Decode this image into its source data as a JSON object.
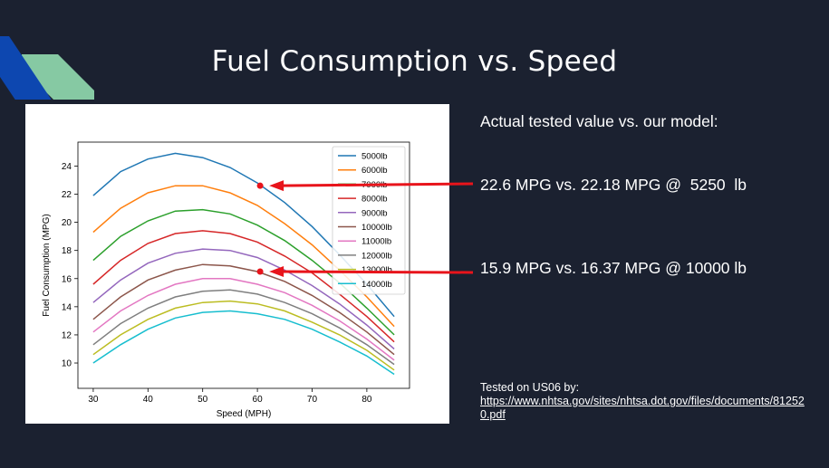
{
  "slide": {
    "title": "Fuel Consumption vs. Speed",
    "subtitle": "Actual tested value vs. our model:",
    "comparisons": [
      {
        "text": "22.6 MPG vs. 22.18 MPG @  5250  lb",
        "marker": {
          "x": 60.5,
          "y": 22.6
        }
      },
      {
        "text": "15.9 MPG vs. 16.37 MPG @ 10000 lb",
        "marker": {
          "x": 60.5,
          "y": 16.5
        }
      }
    ],
    "source_label": "Tested on US06 by:",
    "source_link": "https://www.nhtsa.gov/sites/nhtsa.dot.gov/files/documents/812520.pdf",
    "colors": {
      "background": "#1b2130",
      "arrow": "#e8141b",
      "accent_blue": "#0d47b0",
      "accent_green": "#86c9a3"
    }
  },
  "chart_data": {
    "type": "line",
    "xlabel": "Speed (MPH)",
    "ylabel": "Fuel Consumption (MPG)",
    "xlim": [
      27.2,
      87.8
    ],
    "ylim": [
      8.2,
      25.7
    ],
    "xticks": [
      30,
      40,
      50,
      60,
      70,
      80
    ],
    "yticks": [
      10,
      12,
      14,
      16,
      18,
      20,
      22,
      24
    ],
    "grid": false,
    "legend": "top-right",
    "x": [
      30,
      35,
      40,
      45,
      50,
      55,
      60,
      65,
      70,
      75,
      80,
      85
    ],
    "series": [
      {
        "name": "5000lb",
        "color": "#1f77b4",
        "values": [
          21.9,
          23.6,
          24.5,
          24.9,
          24.6,
          23.9,
          22.8,
          21.4,
          19.7,
          17.7,
          15.6,
          13.3
        ]
      },
      {
        "name": "6000lb",
        "color": "#ff7f0e",
        "values": [
          19.3,
          21.0,
          22.1,
          22.6,
          22.6,
          22.1,
          21.2,
          19.9,
          18.4,
          16.6,
          14.7,
          12.6
        ]
      },
      {
        "name": "7000lb",
        "color": "#2ca02c",
        "values": [
          17.3,
          19.0,
          20.1,
          20.8,
          20.9,
          20.6,
          19.8,
          18.7,
          17.3,
          15.7,
          13.9,
          12.0
        ]
      },
      {
        "name": "8000lb",
        "color": "#d62728",
        "values": [
          15.6,
          17.3,
          18.5,
          19.2,
          19.4,
          19.2,
          18.6,
          17.6,
          16.4,
          14.9,
          13.3,
          11.5
        ]
      },
      {
        "name": "9000lb",
        "color": "#9467bd",
        "values": [
          14.3,
          15.9,
          17.1,
          17.8,
          18.1,
          18.0,
          17.5,
          16.6,
          15.5,
          14.2,
          12.7,
          11.0
        ]
      },
      {
        "name": "10000lb",
        "color": "#8c564b",
        "values": [
          13.1,
          14.7,
          15.9,
          16.6,
          17.0,
          16.9,
          16.5,
          15.8,
          14.8,
          13.6,
          12.2,
          10.6
        ]
      },
      {
        "name": "11000lb",
        "color": "#e377c2",
        "values": [
          12.2,
          13.7,
          14.8,
          15.6,
          16.0,
          16.0,
          15.6,
          15.0,
          14.1,
          13.0,
          11.7,
          10.2
        ]
      },
      {
        "name": "12000lb",
        "color": "#7f7f7f",
        "values": [
          11.3,
          12.8,
          13.9,
          14.7,
          15.1,
          15.2,
          14.9,
          14.3,
          13.5,
          12.5,
          11.3,
          9.9
        ]
      },
      {
        "name": "13000lb",
        "color": "#bcbd22",
        "values": [
          10.6,
          12.0,
          13.1,
          13.9,
          14.3,
          14.4,
          14.2,
          13.7,
          12.9,
          12.0,
          10.9,
          9.5
        ]
      },
      {
        "name": "14000lb",
        "color": "#17becf",
        "values": [
          10.0,
          11.3,
          12.4,
          13.2,
          13.6,
          13.7,
          13.5,
          13.1,
          12.4,
          11.5,
          10.5,
          9.2
        ]
      }
    ]
  }
}
